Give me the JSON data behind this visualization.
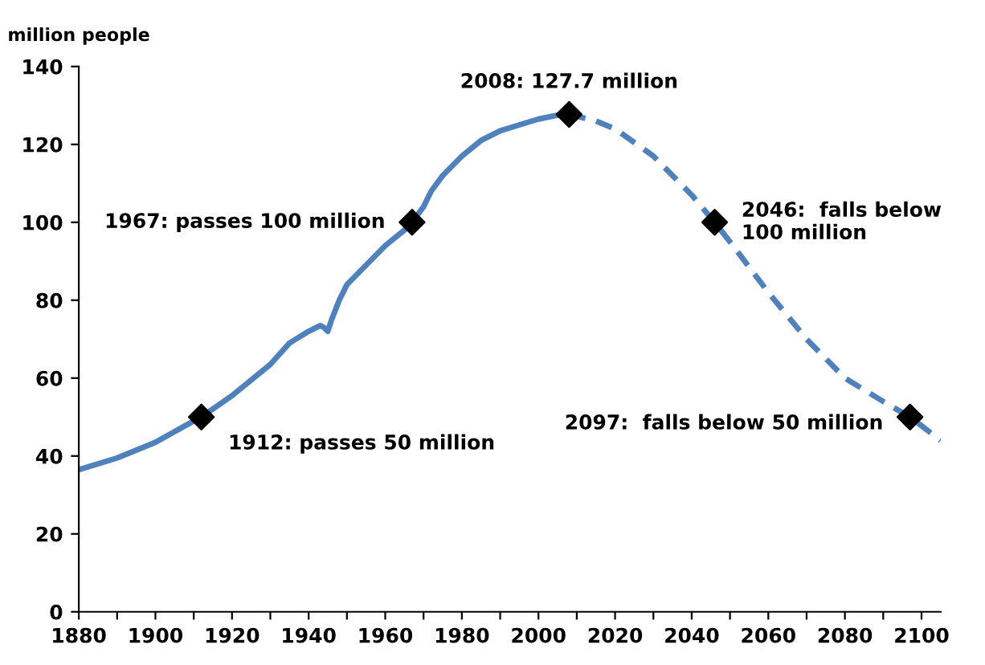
{
  "chart_data": {
    "type": "line",
    "ylabel": "million people",
    "xlim": [
      1880,
      2105
    ],
    "ylim": [
      0,
      140
    ],
    "xticks": [
      1880,
      {
        "value": 1890,
        "label": null
      },
      1900,
      {
        "value": 1910,
        "label": null
      },
      1920,
      {
        "value": 1930,
        "label": null
      },
      1940,
      {
        "value": 1950,
        "label": null
      },
      1960,
      {
        "value": 1970,
        "label": null
      },
      1980,
      {
        "value": 1990,
        "label": null
      },
      2000,
      {
        "value": 2010,
        "label": null
      },
      2020,
      {
        "value": 2030,
        "label": null
      },
      2040,
      {
        "value": 2050,
        "label": null
      },
      2060,
      {
        "value": 2070,
        "label": null
      },
      2080,
      {
        "value": 2090,
        "label": null
      },
      2100
    ],
    "yticks": [
      0,
      20,
      40,
      60,
      80,
      100,
      120,
      140
    ],
    "grid": false,
    "legend": false,
    "series": [
      {
        "color": "#4f81bd",
        "line_style": "solid",
        "marker": "none",
        "x": [
          1880,
          1890,
          1900,
          1910,
          1912,
          1920,
          1930,
          1935,
          1940,
          1943,
          1944,
          1945,
          1946,
          1948,
          1950,
          1955,
          1960,
          1965,
          1967,
          1970,
          1972,
          1975,
          1980,
          1985,
          1990,
          1995,
          2000,
          2005,
          2008
        ],
        "values": [
          36.5,
          39.5,
          43.5,
          49,
          50,
          55.5,
          63.5,
          69,
          72,
          73.5,
          73,
          72,
          75,
          80,
          84,
          89,
          94,
          98,
          100,
          104,
          108,
          112,
          117,
          121,
          123.5,
          125,
          126.5,
          127.5,
          127.7
        ]
      },
      {
        "color": "#4f81bd",
        "line_style": "dashed",
        "marker": "none",
        "x": [
          2008,
          2015,
          2020,
          2030,
          2040,
          2046,
          2050,
          2060,
          2070,
          2080,
          2090,
          2097,
          2105
        ],
        "values": [
          127.7,
          126,
          124,
          117,
          107,
          100,
          95,
          82,
          70,
          60,
          54,
          50,
          44
        ]
      },
      {
        "type": "scatter",
        "color": "#000000",
        "marker": "diamond",
        "x": [
          1912,
          1967,
          2008,
          2046,
          2097
        ],
        "values": [
          50,
          100,
          127.7,
          100,
          50
        ]
      }
    ],
    "annotations": [
      {
        "text": "1912: passes 50 million",
        "x": 1912,
        "y": 50
      },
      {
        "text": "1967: passes 100 million",
        "x": 1967,
        "y": 100
      },
      {
        "text": "2008: 127.7 million",
        "x": 2008,
        "y": 127.7
      },
      {
        "text": "2046:  falls below\n100 million",
        "x": 2046,
        "y": 100
      },
      {
        "text": "2097:  falls below 50 million",
        "x": 2097,
        "y": 50
      }
    ]
  }
}
